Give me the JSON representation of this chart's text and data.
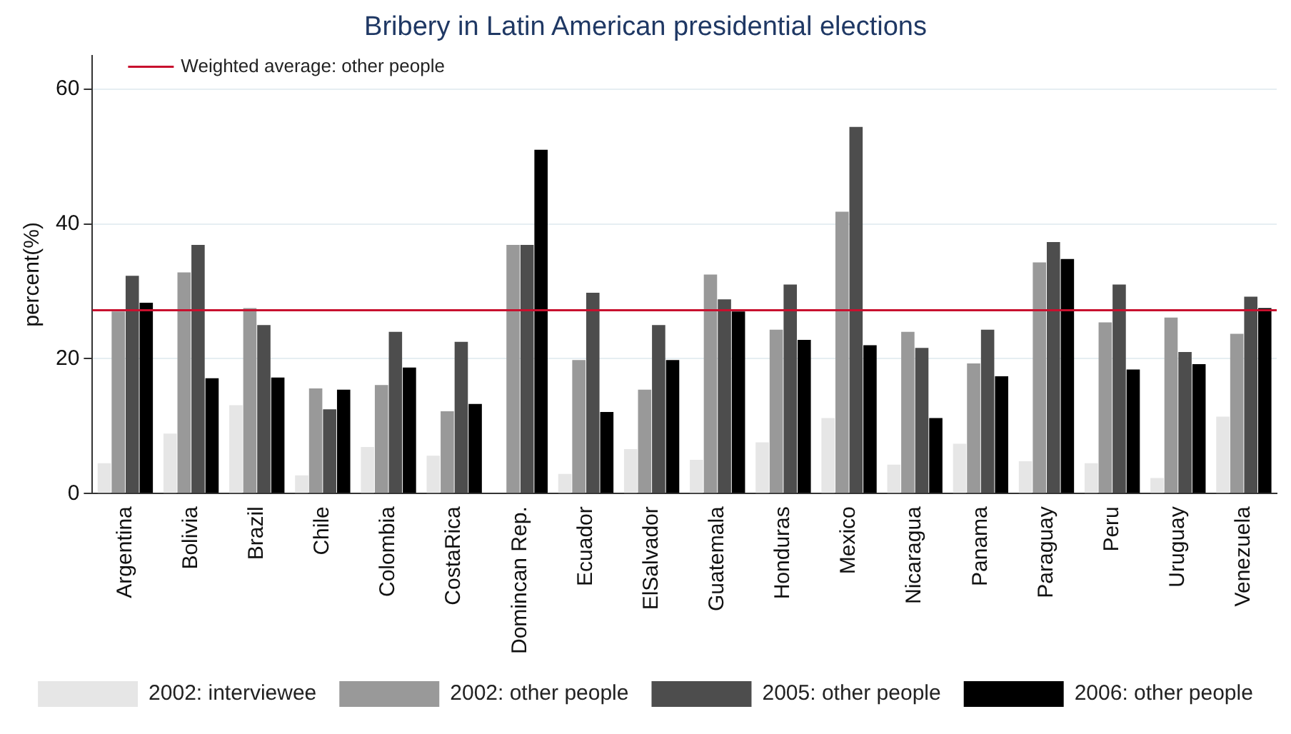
{
  "chart_data": {
    "type": "bar",
    "title": "Bribery in Latin American presidential elections",
    "ylabel": "percent(%)",
    "categories": [
      "Argentina",
      "Bolivia",
      "Brazil",
      "Chile",
      "Colombia",
      "CostaRica",
      "Domincan Rep.",
      "Ecuador",
      "ElSalvador",
      "Guatemala",
      "Honduras",
      "Mexico",
      "Nicaragua",
      "Panama",
      "Paraguay",
      "Peru",
      "Uruguay",
      "Venezuela"
    ],
    "series": [
      {
        "name": "2002: interviewee",
        "color": "#e6e6e6",
        "values": [
          4.5,
          8.9,
          13.1,
          2.7,
          6.9,
          5.6,
          null,
          2.9,
          6.6,
          5,
          7.6,
          11.2,
          4.3,
          7.4,
          4.8,
          4.5,
          2.3,
          11.4
        ]
      },
      {
        "name": "2002: other people",
        "color": "#999999",
        "values": [
          27,
          32.8,
          27.5,
          15.6,
          16.1,
          12.2,
          36.9,
          19.8,
          15.4,
          32.5,
          24.3,
          41.8,
          24,
          19.3,
          34.3,
          25.4,
          26.1,
          23.7
        ]
      },
      {
        "name": "2005: other people",
        "color": "#4d4d4d",
        "values": [
          32.3,
          36.9,
          25,
          12.5,
          24,
          22.5,
          36.9,
          29.8,
          25,
          28.8,
          31,
          54.4,
          21.6,
          24.3,
          37.3,
          31,
          21,
          29.2
        ]
      },
      {
        "name": "2006: other people",
        "color": "#000000",
        "values": [
          28.3,
          17.1,
          17.2,
          15.4,
          18.7,
          13.3,
          51,
          12.1,
          19.8,
          27,
          22.8,
          22,
          11.2,
          17.4,
          34.8,
          18.4,
          19.2,
          27.5
        ]
      }
    ],
    "ref_lines": [
      {
        "axis": "y",
        "value": 27.2,
        "label": "Weighted average: other people",
        "color": "#c8102e"
      }
    ],
    "ylim": [
      0,
      65
    ],
    "yticks": [
      0,
      20,
      40,
      60
    ],
    "grid": "y",
    "legend": "bottom"
  }
}
